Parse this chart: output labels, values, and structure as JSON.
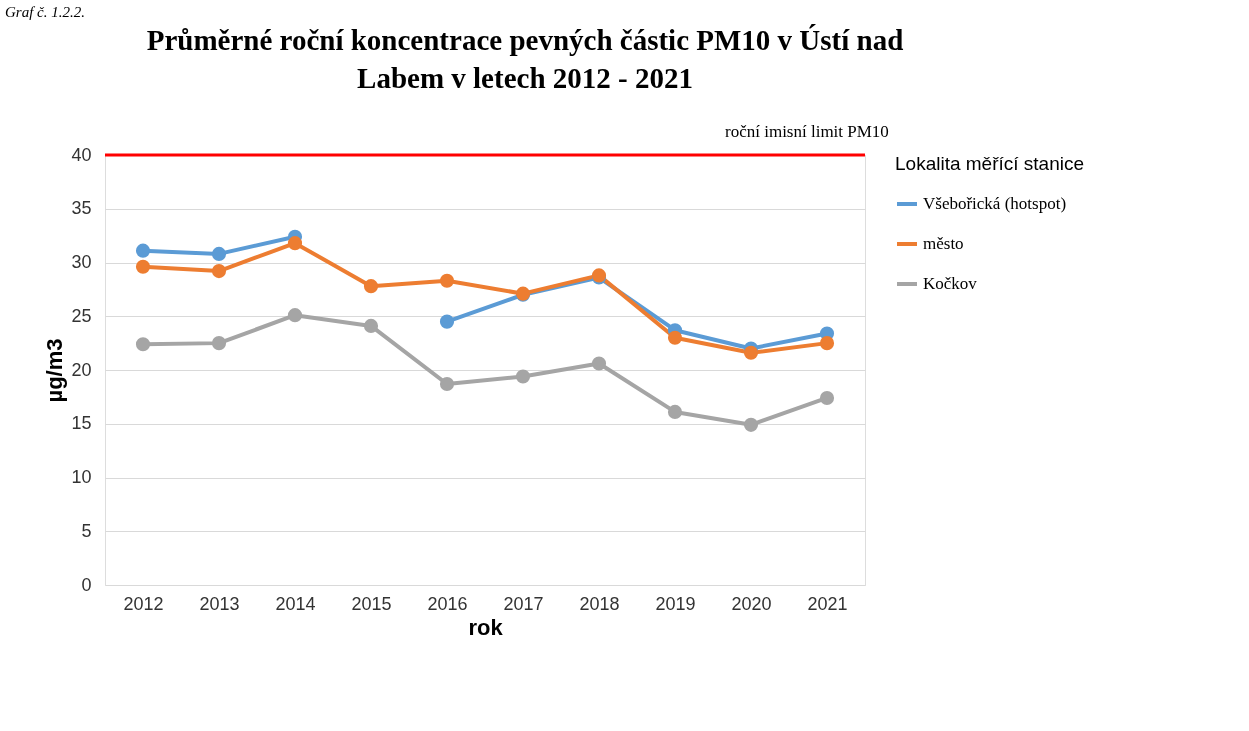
{
  "chart_data": {
    "type": "line",
    "title": [
      "Průměrné roční koncentrace pevných částic PM10 v Ústí nad",
      "Labem v letech 2012 - 2021"
    ],
    "xlabel": "rok",
    "ylabel": "µg/m3",
    "legend_title": "Lokalita měřící stanice",
    "annotations": [
      "Graf č. 1.2.2."
    ],
    "categories": [
      "2012",
      "2013",
      "2014",
      "2015",
      "2016",
      "2017",
      "2018",
      "2019",
      "2020",
      "2021"
    ],
    "series": [
      {
        "name": "Všebořická (hotspot)",
        "color": "#5b9bd5",
        "values": [
          31.1,
          30.8,
          32.4,
          null,
          24.5,
          27.0,
          28.6,
          23.7,
          22.0,
          23.4
        ]
      },
      {
        "name": "město",
        "color": "#ed7d31",
        "values": [
          29.6,
          29.2,
          31.8,
          27.8,
          28.3,
          27.1,
          28.8,
          23.0,
          21.6,
          22.5
        ]
      },
      {
        "name": "Kočkov",
        "color": "#a5a5a5",
        "values": [
          22.4,
          22.5,
          25.1,
          24.1,
          18.7,
          19.4,
          20.6,
          16.1,
          14.9,
          17.4
        ]
      }
    ],
    "ref_lines": [
      {
        "axis": "y",
        "value": 40,
        "label": "roční imisní limit  PM10",
        "color": "#ff0000",
        "line_style": "solid"
      }
    ],
    "ylim": [
      0,
      40
    ],
    "yticks": [
      0,
      5,
      10,
      15,
      20,
      25,
      30,
      35,
      40
    ],
    "grid": "y",
    "legend": "right",
    "marker": "circle",
    "line_style": "solid"
  }
}
